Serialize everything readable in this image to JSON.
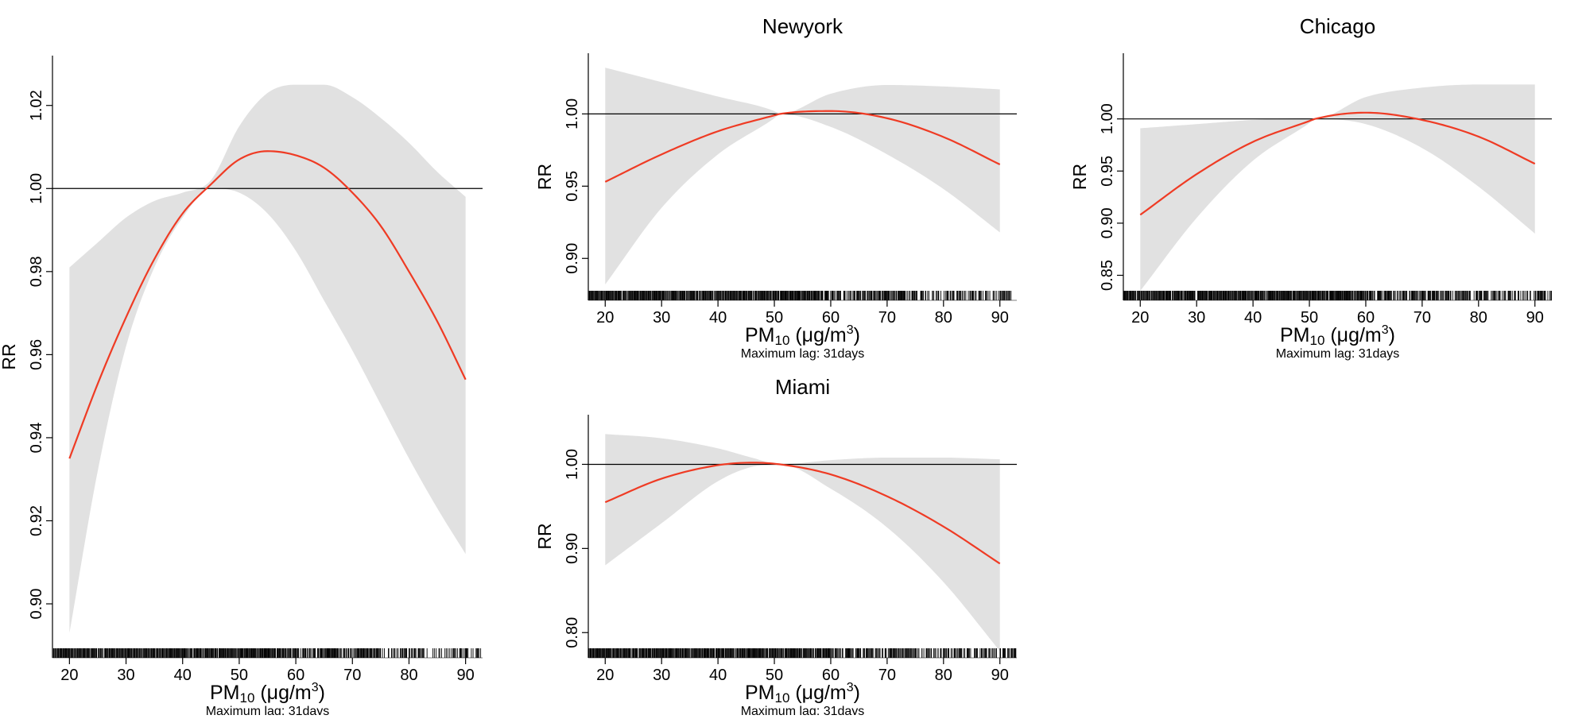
{
  "figure": {
    "colors": {
      "ci_band": "#e1e1e1",
      "curve": "#ef3b24",
      "reference": "#000000",
      "axes": "#000000"
    },
    "xlabel_main": "PM",
    "xlabel_sub": "10",
    "xlabel_unit": "(μg/m",
    "xlabel_exp": "3",
    "xlabel_close": ")",
    "lag_note": "Maximum lag: 31days"
  },
  "chart_data": [
    {
      "id": "overall",
      "type": "line",
      "title": "",
      "xlabel": "PM10 (μg/m3)",
      "ylabel": "RR",
      "note": "Maximum lag: 31days",
      "xlim": [
        17,
        93
      ],
      "ylim": [
        0.887,
        1.032
      ],
      "xticks": [
        20,
        30,
        40,
        50,
        60,
        70,
        80,
        90
      ],
      "yticks": [
        0.9,
        0.92,
        0.94,
        0.96,
        0.98,
        1.0,
        1.02
      ],
      "ytick_labels": [
        "0.90",
        "0.92",
        "0.94",
        "0.96",
        "0.98",
        "1.00",
        "1.02"
      ],
      "reference_line": 1.0,
      "rug": true,
      "grid": false,
      "x": [
        20,
        25,
        30,
        35,
        40,
        45,
        50,
        55,
        60,
        65,
        70,
        75,
        80,
        85,
        90
      ],
      "rr": [
        0.935,
        0.953,
        0.969,
        0.983,
        0.994,
        1.001,
        1.007,
        1.009,
        1.008,
        1.005,
        0.999,
        0.991,
        0.98,
        0.968,
        0.954
      ],
      "lower": [
        0.893,
        0.932,
        0.962,
        0.981,
        0.993,
        1.0,
        0.999,
        0.994,
        0.985,
        0.973,
        0.961,
        0.948,
        0.935,
        0.923,
        0.912
      ],
      "upper": [
        0.981,
        0.987,
        0.993,
        0.997,
        0.999,
        1.002,
        1.015,
        1.023,
        1.025,
        1.025,
        1.022,
        1.017,
        1.011,
        1.004,
        0.998
      ]
    },
    {
      "id": "newyork",
      "type": "line",
      "title": "Newyork",
      "xlabel": "PM10 (μg/m3)",
      "ylabel": "RR",
      "note": "Maximum lag: 31days",
      "xlim": [
        17,
        93
      ],
      "ylim": [
        0.871,
        1.042
      ],
      "xticks": [
        20,
        30,
        40,
        50,
        60,
        70,
        80,
        90
      ],
      "yticks": [
        0.9,
        0.95,
        1.0
      ],
      "ytick_labels": [
        "0.90",
        "0.95",
        "1.00"
      ],
      "reference_line": 1.0,
      "rug": true,
      "grid": false,
      "x": [
        20,
        30,
        40,
        50,
        51,
        60,
        70,
        80,
        90
      ],
      "rr": [
        0.953,
        0.972,
        0.988,
        0.999,
        1.0,
        1.002,
        0.997,
        0.984,
        0.965
      ],
      "lower": [
        0.882,
        0.935,
        0.972,
        0.997,
        1.0,
        0.991,
        0.972,
        0.948,
        0.918
      ],
      "upper": [
        1.032,
        1.022,
        1.012,
        1.002,
        1.0,
        1.014,
        1.02,
        1.019,
        1.017
      ]
    },
    {
      "id": "chicago",
      "type": "line",
      "title": "Chicago",
      "xlabel": "PM10 (μg/m3)",
      "ylabel": "RR",
      "note": "Maximum lag: 31days",
      "xlim": [
        17,
        93
      ],
      "ylim": [
        0.826,
        1.063
      ],
      "xticks": [
        20,
        30,
        40,
        50,
        60,
        70,
        80,
        90
      ],
      "yticks": [
        0.85,
        0.9,
        0.95,
        1.0
      ],
      "ytick_labels": [
        "0.85",
        "0.90",
        "0.95",
        "1.00"
      ],
      "reference_line": 1.0,
      "rug": true,
      "grid": false,
      "x": [
        20,
        30,
        40,
        50,
        51,
        60,
        70,
        80,
        90
      ],
      "rr": [
        0.908,
        0.947,
        0.978,
        0.998,
        1.0,
        1.006,
        0.999,
        0.983,
        0.957
      ],
      "lower": [
        0.835,
        0.905,
        0.96,
        0.996,
        1.0,
        0.995,
        0.972,
        0.935,
        0.89
      ],
      "upper": [
        0.991,
        0.995,
        0.999,
        1.001,
        1.0,
        1.021,
        1.03,
        1.033,
        1.033
      ]
    },
    {
      "id": "miami",
      "type": "line",
      "title": "Miami",
      "xlabel": "PM10 (μg/m3)",
      "ylabel": "RR",
      "note": "Maximum lag: 31days",
      "xlim": [
        17,
        93
      ],
      "ylim": [
        0.77,
        1.059
      ],
      "xticks": [
        20,
        30,
        40,
        50,
        60,
        70,
        80,
        90
      ],
      "yticks": [
        0.8,
        0.9,
        1.0
      ],
      "ytick_labels": [
        "0.80",
        "0.90",
        "1.00"
      ],
      "reference_line": 1.0,
      "rug": true,
      "grid": false,
      "x": [
        20,
        30,
        40,
        46,
        51,
        60,
        70,
        80,
        90
      ],
      "rr": [
        0.955,
        0.983,
        0.999,
        1.002,
        1.0,
        0.988,
        0.962,
        0.926,
        0.882
      ],
      "lower": [
        0.88,
        0.93,
        0.98,
        0.997,
        1.0,
        0.971,
        0.925,
        0.86,
        0.778
      ],
      "upper": [
        1.036,
        1.031,
        1.019,
        1.008,
        1.0,
        1.005,
        1.008,
        1.008,
        1.006
      ]
    }
  ]
}
